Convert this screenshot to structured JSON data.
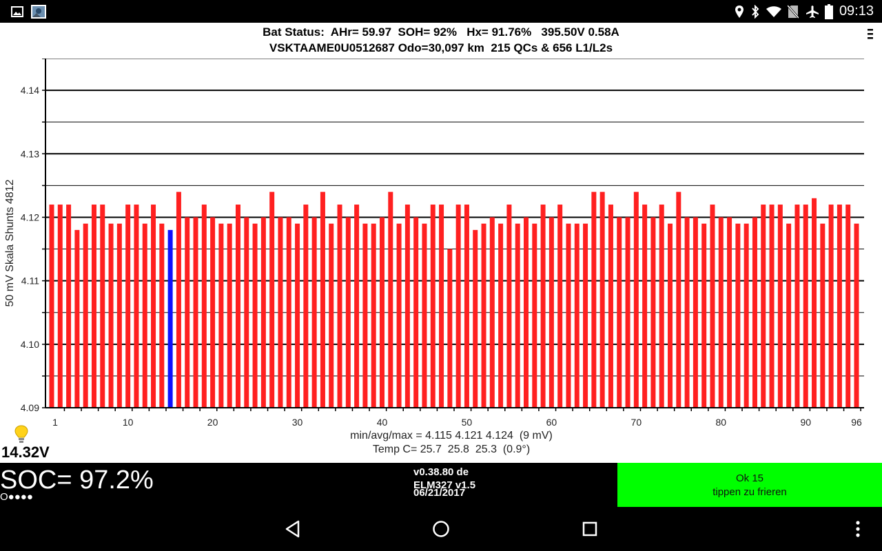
{
  "status_bar": {
    "time": "09:13",
    "left_icons": [
      "image-icon",
      "photo-icon"
    ],
    "right_icons": [
      "location-icon",
      "bluetooth-icon",
      "wifi-icon",
      "no-sim-icon",
      "airplane-icon",
      "battery-icon"
    ]
  },
  "header": {
    "line1": "Bat Status:  AHr= 59.97  SOH= 92%   Hx= 91.76%   395.50V 0.58A",
    "line2": "VSKTAAME0U0512687 Odo=30,097 km  215 QCs & 656 L1/L2s"
  },
  "chart_data": {
    "type": "bar",
    "ylabel": "50 mV Skala   Shunts 4812",
    "ylim": [
      4.09,
      4.145
    ],
    "yticks": [
      4.09,
      4.1,
      4.11,
      4.12,
      4.13,
      4.14
    ],
    "ytick_labels": [
      "4.09",
      "4.10",
      "4.11",
      "4.12",
      "4.13",
      "4.14"
    ],
    "xticks": [
      1,
      10,
      20,
      30,
      40,
      50,
      60,
      70,
      80,
      90,
      96
    ],
    "xtick_labels": [
      "1",
      "10",
      "20",
      "30",
      "40",
      "50",
      "60",
      "70",
      "80",
      "90",
      "96"
    ],
    "grid": true,
    "bar_color": "#ff2020",
    "highlight_color": "#1010ff",
    "highlight_index": 15,
    "x": [
      1,
      2,
      3,
      4,
      5,
      6,
      7,
      8,
      9,
      10,
      11,
      12,
      13,
      14,
      15,
      16,
      17,
      18,
      19,
      20,
      21,
      22,
      23,
      24,
      25,
      26,
      27,
      28,
      29,
      30,
      31,
      32,
      33,
      34,
      35,
      36,
      37,
      38,
      39,
      40,
      41,
      42,
      43,
      44,
      45,
      46,
      47,
      48,
      49,
      50,
      51,
      52,
      53,
      54,
      55,
      56,
      57,
      58,
      59,
      60,
      61,
      62,
      63,
      64,
      65,
      66,
      67,
      68,
      69,
      70,
      71,
      72,
      73,
      74,
      75,
      76,
      77,
      78,
      79,
      80,
      81,
      82,
      83,
      84,
      85,
      86,
      87,
      88,
      89,
      90,
      91,
      92,
      93,
      94,
      95,
      96
    ],
    "values": [
      4.122,
      4.122,
      4.122,
      4.118,
      4.119,
      4.122,
      4.122,
      4.119,
      4.119,
      4.122,
      4.122,
      4.119,
      4.122,
      4.119,
      4.118,
      4.124,
      4.12,
      4.12,
      4.122,
      4.12,
      4.119,
      4.119,
      4.122,
      4.12,
      4.119,
      4.12,
      4.124,
      4.12,
      4.12,
      4.119,
      4.122,
      4.12,
      4.124,
      4.119,
      4.122,
      4.12,
      4.122,
      4.119,
      4.119,
      4.12,
      4.124,
      4.119,
      4.122,
      4.12,
      4.119,
      4.122,
      4.122,
      4.115,
      4.122,
      4.122,
      4.118,
      4.119,
      4.12,
      4.119,
      4.122,
      4.119,
      4.12,
      4.119,
      4.122,
      4.12,
      4.122,
      4.119,
      4.119,
      4.119,
      4.124,
      4.124,
      4.122,
      4.12,
      4.12,
      4.124,
      4.122,
      4.12,
      4.122,
      4.119,
      4.124,
      4.12,
      4.12,
      4.119,
      4.122,
      4.12,
      4.12,
      4.119,
      4.119,
      4.12,
      4.122,
      4.122,
      4.122,
      4.119,
      4.122,
      4.122,
      4.123,
      4.119,
      4.122,
      4.122,
      4.122,
      4.119
    ]
  },
  "stats": {
    "line1": "min/avg/max = 4.115 4.121 4.124  (9 mV)",
    "line2": "Temp C= 25.7  25.8  25.3  (0.9°)"
  },
  "voltage": "14.32V",
  "bottom": {
    "soc": "SOC= 97.2%",
    "dots": "O●●●●",
    "version_lines": [
      "v0.38.80 de",
      "ELM327 v1.5",
      "06/21/2017"
    ],
    "ok_line1": "Ok 15",
    "ok_line2": "tippen zu frieren",
    "ok_color": "#00ff00"
  },
  "nav_bar": {
    "icons": [
      "back-icon",
      "home-icon",
      "recents-icon",
      "overflow-menu-icon"
    ]
  }
}
